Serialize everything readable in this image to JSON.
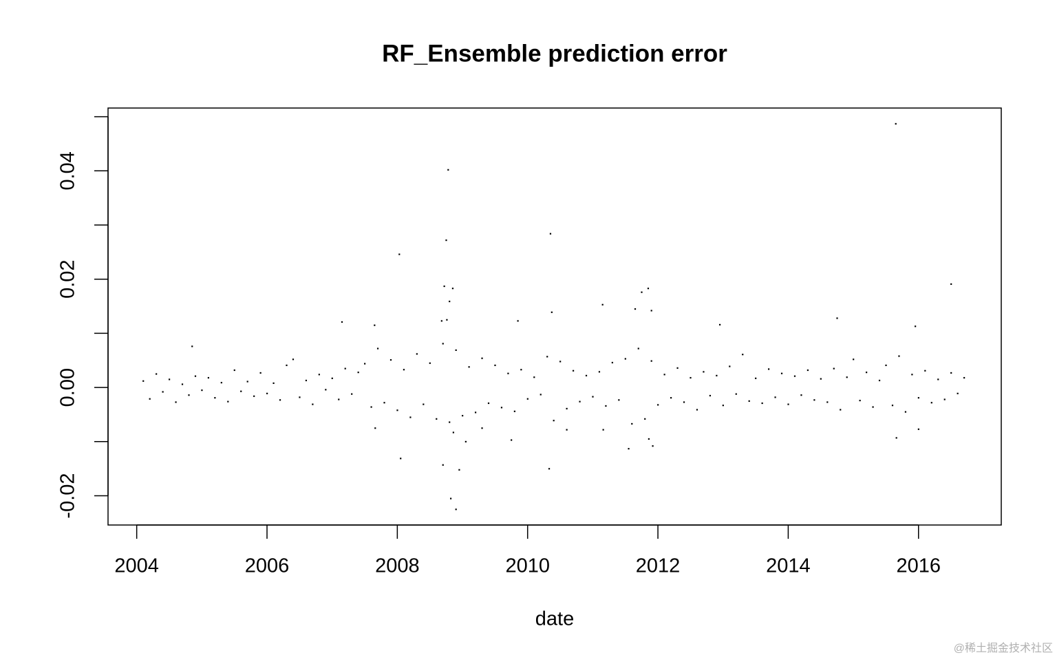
{
  "chart_data": {
    "type": "scatter",
    "title": "RF_Ensemble prediction error",
    "x_label": "date",
    "watermark": "@稀土掘金技术社区",
    "xlim": [
      2003.56,
      2017.27
    ],
    "xticks": [
      2004,
      2006,
      2008,
      2010,
      2012,
      2014,
      2016
    ],
    "ylim": [
      -0.0254,
      0.0516
    ],
    "yticks": [
      {
        "value": -0.02,
        "label": "-0.02"
      },
      {
        "value": -0.01,
        "label": null
      },
      {
        "value": 0,
        "label": "0.00"
      },
      {
        "value": 0.01,
        "label": null
      },
      {
        "value": 0.02,
        "label": "0.02"
      },
      {
        "value": 0.03,
        "label": null
      },
      {
        "value": 0.04,
        "label": "0.04"
      },
      {
        "value": 0.05,
        "label": null
      }
    ],
    "series": [
      {
        "color": "#000000",
        "x": [
          2004.1,
          2004.2,
          2004.3,
          2004.4,
          2004.5,
          2004.6,
          2004.7,
          2004.8,
          2004.9,
          2005.0,
          2005.1,
          2005.2,
          2005.3,
          2005.4,
          2005.5,
          2005.6,
          2005.7,
          2005.8,
          2005.9,
          2006.0,
          2006.1,
          2006.2,
          2006.3,
          2006.4,
          2006.5,
          2006.6,
          2006.7,
          2006.8,
          2006.9,
          2007.0,
          2007.1,
          2007.2,
          2007.3,
          2007.4,
          2007.5,
          2007.6,
          2007.7,
          2007.8,
          2007.9,
          2008.0,
          2008.1,
          2008.2,
          2008.3,
          2008.4,
          2008.5,
          2008.6,
          2008.7,
          2008.8,
          2008.9,
          2009.0,
          2009.1,
          2009.2,
          2009.3,
          2009.4,
          2009.5,
          2009.6,
          2009.7,
          2009.8,
          2009.9,
          2010.0,
          2010.1,
          2010.2,
          2010.3,
          2010.4,
          2010.5,
          2010.6,
          2010.7,
          2010.8,
          2010.9,
          2011.0,
          2011.1,
          2011.2,
          2011.3,
          2011.4,
          2011.5,
          2011.6,
          2011.7,
          2011.8,
          2011.9,
          2012.0,
          2012.1,
          2012.2,
          2012.3,
          2012.4,
          2012.5,
          2012.6,
          2012.7,
          2012.8,
          2012.9,
          2013.0,
          2013.1,
          2013.2,
          2013.3,
          2013.4,
          2013.5,
          2013.6,
          2013.7,
          2013.8,
          2013.9,
          2014.0,
          2014.1,
          2014.2,
          2014.3,
          2014.4,
          2014.5,
          2014.6,
          2014.7,
          2014.8,
          2014.9,
          2015.0,
          2015.1,
          2015.2,
          2015.3,
          2015.4,
          2015.5,
          2015.6,
          2015.7,
          2015.8,
          2015.9,
          2016.0,
          2016.1,
          2016.2,
          2016.3,
          2016.4,
          2016.5,
          2016.6,
          2016.7,
          2008.78,
          2008.75,
          2008.03,
          2010.35,
          2015.65,
          2016.5,
          2008.9,
          2008.82,
          2008.7,
          2010.33,
          2008.05,
          2011.15,
          2011.65,
          2011.85,
          2011.75,
          2008.72,
          2008.85,
          2008.8,
          2007.15,
          2009.85,
          2012.95,
          2014.75,
          2010.37,
          2015.95,
          2011.9,
          2008.76,
          2008.68,
          2004.85,
          2007.65,
          2008.95,
          2009.05,
          2009.3,
          2011.55,
          2011.92,
          2011.86,
          2015.66,
          2016.0,
          2007.66,
          2008.86,
          2009.75,
          2010.6,
          2011.16
        ],
        "values": [
          0.0012,
          -0.0021,
          0.0025,
          -0.0008,
          0.0015,
          -0.0027,
          0.0006,
          -0.0014,
          0.0021,
          -0.0005,
          0.0018,
          -0.0019,
          0.0009,
          -0.0026,
          0.0032,
          -0.0007,
          0.0011,
          -0.0016,
          0.0027,
          -0.0011,
          0.0008,
          -0.0023,
          0.0041,
          0.0052,
          -0.0018,
          0.0013,
          -0.0031,
          0.0024,
          -0.0004,
          0.0017,
          -0.0022,
          0.0035,
          -0.0012,
          0.0028,
          0.0044,
          -0.0036,
          0.0072,
          -0.0028,
          0.0051,
          -0.0042,
          0.0033,
          -0.0055,
          0.0062,
          -0.0031,
          0.0045,
          -0.0058,
          0.0081,
          -0.0064,
          0.0069,
          -0.0052,
          0.0038,
          -0.0046,
          0.0054,
          -0.0029,
          0.0041,
          -0.0037,
          0.0026,
          -0.0044,
          0.0033,
          -0.0021,
          0.0019,
          -0.0013,
          0.0057,
          -0.0061,
          0.0048,
          -0.0039,
          0.0031,
          -0.0026,
          0.0022,
          -0.0017,
          0.0029,
          -0.0034,
          0.0046,
          -0.0023,
          0.0053,
          -0.0067,
          0.0072,
          -0.0058,
          0.0049,
          -0.0032,
          0.0024,
          -0.0019,
          0.0036,
          -0.0027,
          0.0018,
          -0.0041,
          0.0029,
          -0.0015,
          0.0022,
          -0.0033,
          0.0039,
          -0.0012,
          0.0061,
          -0.0025,
          0.0017,
          -0.0029,
          0.0034,
          -0.0018,
          0.0026,
          -0.0031,
          0.0021,
          -0.0014,
          0.0032,
          -0.0023,
          0.0016,
          -0.0027,
          0.0035,
          -0.0041,
          0.0019,
          0.0052,
          -0.0024,
          0.0028,
          -0.0036,
          0.0013,
          0.0041,
          -0.0033,
          0.0058,
          -0.0045,
          0.0024,
          -0.0019,
          0.0031,
          -0.0028,
          0.0015,
          -0.0022,
          0.0027,
          -0.0011,
          0.0018,
          0.0402,
          0.0272,
          0.0246,
          0.0284,
          0.0487,
          0.0191,
          -0.0225,
          -0.0205,
          -0.0143,
          -0.015,
          -0.0131,
          0.0153,
          0.0145,
          0.0183,
          0.0176,
          0.0187,
          0.0183,
          0.0159,
          0.0121,
          0.0123,
          0.0116,
          0.0128,
          0.0139,
          0.0113,
          0.0142,
          0.0125,
          0.0123,
          0.0076,
          0.0115,
          -0.0152,
          -0.01,
          -0.0075,
          -0.0113,
          -0.0108,
          -0.0095,
          -0.0093,
          -0.0077,
          -0.0075,
          -0.0083,
          -0.0097,
          -0.0078,
          -0.0078
        ]
      }
    ]
  }
}
